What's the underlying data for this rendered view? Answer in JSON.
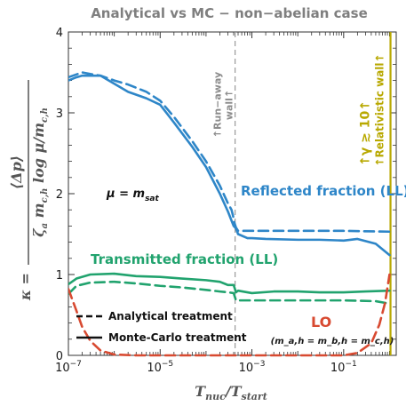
{
  "chart_data": {
    "type": "line",
    "title": "Analytical vs MC − non−abelian case",
    "xlabel": "T_nuc/T_start",
    "ylabel": "κ = ⟨Δp⟩ / (ζ_a m_c,h log μ/m_c,h)",
    "x_scale": "log",
    "xlim": [
      1e-07,
      1.4
    ],
    "ylim": [
      0,
      4
    ],
    "x_ticks": [
      {
        "v": 1e-07,
        "label": "10−7"
      },
      {
        "v": 1e-05,
        "label": "10−5"
      },
      {
        "v": 0.001,
        "label": "10−3"
      },
      {
        "v": 0.1,
        "label": "10−1"
      }
    ],
    "y_ticks": [
      0,
      1,
      2,
      3,
      4
    ],
    "series": [
      {
        "name": "Reflected fraction (LL)",
        "method": "analytical",
        "color": "#2e86c8",
        "x": [
          1e-07,
          2e-07,
          3e-07,
          5e-07,
          1e-06,
          2e-06,
          5e-06,
          1e-05,
          2e-05,
          5e-05,
          0.0001,
          0.0002,
          0.0003,
          0.00036,
          0.00039,
          0.00041,
          0.00045,
          0.0005,
          0.0007,
          0.001,
          0.01,
          0.1,
          1
        ],
        "y": [
          3.44,
          3.5,
          3.48,
          3.46,
          3.4,
          3.35,
          3.26,
          3.15,
          2.95,
          2.65,
          2.4,
          2.1,
          1.88,
          1.8,
          1.72,
          1.65,
          1.58,
          1.54,
          1.54,
          1.54,
          1.54,
          1.54,
          1.53
        ]
      },
      {
        "name": "Reflected fraction (LL)",
        "method": "monte-carlo",
        "color": "#2e86c8",
        "x": [
          1e-07,
          1.5e-07,
          2e-07,
          5e-07,
          1e-06,
          2e-06,
          5e-06,
          1e-05,
          2e-05,
          5e-05,
          0.0001,
          0.0002,
          0.0003,
          0.0004,
          0.00045,
          0.0005,
          0.0008,
          0.001,
          0.002,
          0.01,
          0.03,
          0.1,
          0.2,
          0.5,
          1
        ],
        "y": [
          3.4,
          3.44,
          3.46,
          3.46,
          3.36,
          3.26,
          3.18,
          3.1,
          2.88,
          2.58,
          2.33,
          2.0,
          1.78,
          1.6,
          1.57,
          1.5,
          1.45,
          1.45,
          1.44,
          1.43,
          1.43,
          1.42,
          1.44,
          1.38,
          1.24
        ]
      },
      {
        "name": "Transmitted fraction (LL)",
        "method": "analytical",
        "color": "#21a36e",
        "x": [
          1e-07,
          1.5e-07,
          3e-07,
          1e-06,
          3e-06,
          1e-05,
          3e-05,
          0.0001,
          0.0002,
          0.0003,
          0.0004,
          0.00045,
          0.0005,
          0.001,
          0.01,
          0.1,
          0.5,
          1
        ],
        "y": [
          0.76,
          0.86,
          0.9,
          0.91,
          0.89,
          0.86,
          0.84,
          0.81,
          0.79,
          0.78,
          0.77,
          0.68,
          0.68,
          0.68,
          0.68,
          0.68,
          0.67,
          0.64
        ]
      },
      {
        "name": "Transmitted fraction (LL)",
        "method": "monte-carlo",
        "color": "#21a36e",
        "x": [
          1e-07,
          1.5e-07,
          3e-07,
          1e-06,
          3e-06,
          1e-05,
          3e-05,
          0.0001,
          0.0002,
          0.0003,
          0.0004,
          0.00045,
          0.0005,
          0.001,
          0.003,
          0.01,
          0.03,
          0.1,
          0.3,
          1
        ],
        "y": [
          0.88,
          0.95,
          1.0,
          1.01,
          0.98,
          0.97,
          0.95,
          0.93,
          0.91,
          0.87,
          0.87,
          0.78,
          0.8,
          0.77,
          0.79,
          0.79,
          0.78,
          0.78,
          0.79,
          0.8
        ]
      },
      {
        "name": "LO",
        "method": "analytical",
        "color": "#d84a31",
        "x": [
          1e-07,
          1.5e-07,
          2e-07,
          3e-07,
          5e-07,
          1e-06,
          3e-06,
          1e-05,
          0.0001,
          0.001,
          0.01,
          0.03,
          0.1,
          0.2,
          0.4,
          0.6,
          0.8,
          1
        ],
        "y": [
          0.82,
          0.55,
          0.35,
          0.18,
          0.06,
          0.01,
          0.0,
          0.0,
          0.0,
          0.0,
          0.0,
          0.0,
          0.0,
          0.03,
          0.15,
          0.38,
          0.65,
          1.0
        ]
      }
    ],
    "legend": {
      "placement": "bottom-left",
      "analytical_label": "Analytical treatment",
      "mc_label": "Monte-Carlo treatment"
    },
    "annotations": {
      "mu_main": "μ = m",
      "mu_sub": "sat",
      "runaway_line1": "↑Run−away",
      "runaway_line2": "wall↑",
      "runaway_x": 0.00043,
      "relativistic_label": "↑Relativistic wall↑",
      "gamma_label": "↑γ ≳ 10↑",
      "relativistic_x": 1.05,
      "relativistic_color": "#b8a800",
      "reflected_label": "Reflected fraction (LL)",
      "transmitted_label": "Transmitted fraction (LL)",
      "lo_label": "LO",
      "lo_condition": "(m_a,h = m_b,h = m_c,h)"
    }
  }
}
